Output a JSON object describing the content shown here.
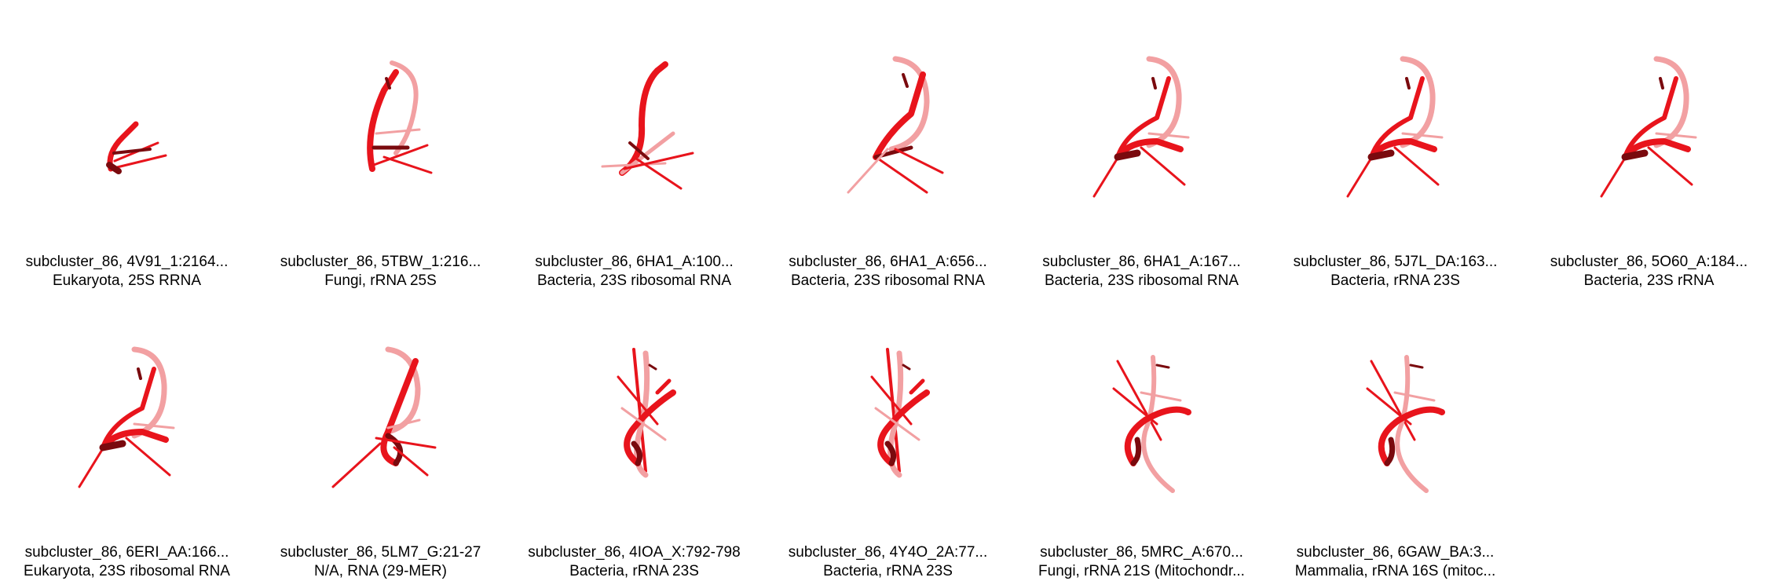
{
  "colors": {
    "strand": "#e8141c",
    "strand_dark": "#7a0a0e",
    "strand_light": "#f2a0a2",
    "background": "#ffffff"
  },
  "structures": [
    {
      "title": "subcluster_86, 4V91_1:2164...",
      "subtitle": "Eukaryota, 25S RRNA",
      "pose": 0
    },
    {
      "title": "subcluster_86, 5TBW_1:216...",
      "subtitle": "Fungi, rRNA 25S",
      "pose": 1
    },
    {
      "title": "subcluster_86, 6HA1_A:100...",
      "subtitle": "Bacteria, 23S ribosomal RNA",
      "pose": 2
    },
    {
      "title": "subcluster_86, 6HA1_A:656...",
      "subtitle": "Bacteria, 23S ribosomal RNA",
      "pose": 3
    },
    {
      "title": "subcluster_86, 6HA1_A:167...",
      "subtitle": "Bacteria, 23S ribosomal RNA",
      "pose": 4
    },
    {
      "title": "subcluster_86, 5J7L_DA:163...",
      "subtitle": "Bacteria, rRNA 23S",
      "pose": 4
    },
    {
      "title": "subcluster_86, 5O60_A:184...",
      "subtitle": "Bacteria, 23S rRNA",
      "pose": 4
    },
    {
      "title": "subcluster_86, 6ERI_AA:166...",
      "subtitle": "Eukaryota, 23S ribosomal RNA",
      "pose": 4
    },
    {
      "title": "subcluster_86, 5LM7_G:21-27",
      "subtitle": "N/A, RNA (29-MER)",
      "pose": 5
    },
    {
      "title": "subcluster_86, 4IOA_X:792-798",
      "subtitle": "Bacteria, rRNA 23S",
      "pose": 6
    },
    {
      "title": "subcluster_86, 4Y4O_2A:77...",
      "subtitle": "Bacteria, rRNA 23S",
      "pose": 6
    },
    {
      "title": "subcluster_86, 5MRC_A:670...",
      "subtitle": "Fungi, rRNA 21S (Mitochondr...",
      "pose": 7
    },
    {
      "title": "subcluster_86, 6GAW_BA:3...",
      "subtitle": "Mammalia, rRNA 16S (mitoc...",
      "pose": 7
    }
  ]
}
